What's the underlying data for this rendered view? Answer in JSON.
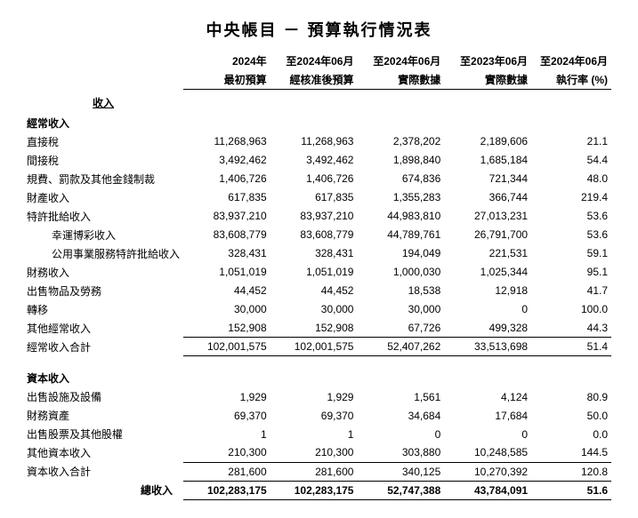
{
  "title": "中央帳目 － 預算執行情況表",
  "columns": {
    "c1": {
      "h1": "2024年",
      "h2": "最初預算"
    },
    "c2": {
      "h1": "至2024年06月",
      "h2": "經核准後預算"
    },
    "c3": {
      "h1": "至2024年06月",
      "h2": "實際數據"
    },
    "c4": {
      "h1": "至2023年06月",
      "h2": "實際數據"
    },
    "c5": {
      "h1": "至2024年06月",
      "h2": "執行率 (%)"
    }
  },
  "section_income": "收入",
  "recurring": {
    "header": "經常收入",
    "rows": [
      {
        "label": "直接稅",
        "v": [
          "11,268,963",
          "11,268,963",
          "2,378,202",
          "2,189,606",
          "21.1"
        ]
      },
      {
        "label": "間接稅",
        "v": [
          "3,492,462",
          "3,492,462",
          "1,898,840",
          "1,685,184",
          "54.4"
        ]
      },
      {
        "label": "規費、罰款及其他金錢制裁",
        "v": [
          "1,406,726",
          "1,406,726",
          "674,836",
          "721,344",
          "48.0"
        ]
      },
      {
        "label": "財產收入",
        "v": [
          "617,835",
          "617,835",
          "1,355,283",
          "366,744",
          "219.4"
        ]
      },
      {
        "label": "特許批給收入",
        "v": [
          "83,937,210",
          "83,937,210",
          "44,983,810",
          "27,013,231",
          "53.6"
        ]
      },
      {
        "label": "幸運博彩收入",
        "indent": 2,
        "v": [
          "83,608,779",
          "83,608,779",
          "44,789,761",
          "26,791,700",
          "53.6"
        ]
      },
      {
        "label": "公用事業服務特許批給收入",
        "indent": 2,
        "v": [
          "328,431",
          "328,431",
          "194,049",
          "221,531",
          "59.1"
        ]
      },
      {
        "label": "財務收入",
        "v": [
          "1,051,019",
          "1,051,019",
          "1,000,030",
          "1,025,344",
          "95.1"
        ]
      },
      {
        "label": "出售物品及勞務",
        "v": [
          "44,452",
          "44,452",
          "18,538",
          "12,918",
          "41.7"
        ]
      },
      {
        "label": "轉移",
        "v": [
          "30,000",
          "30,000",
          "30,000",
          "0",
          "100.0"
        ]
      },
      {
        "label": "其他經常收入",
        "v": [
          "152,908",
          "152,908",
          "67,726",
          "499,328",
          "44.3"
        ]
      }
    ],
    "subtotal": {
      "label": "經常收入合計",
      "v": [
        "102,001,575",
        "102,001,575",
        "52,407,262",
        "33,513,698",
        "51.4"
      ]
    }
  },
  "capital": {
    "header": "資本收入",
    "rows": [
      {
        "label": "出售設施及設備",
        "v": [
          "1,929",
          "1,929",
          "1,561",
          "4,124",
          "80.9"
        ]
      },
      {
        "label": "財務資產",
        "v": [
          "69,370",
          "69,370",
          "34,684",
          "17,684",
          "50.0"
        ]
      },
      {
        "label": "出售股票及其他股權",
        "v": [
          "1",
          "1",
          "0",
          "0",
          "0.0"
        ]
      },
      {
        "label": "其他資本收入",
        "v": [
          "210,300",
          "210,300",
          "303,880",
          "10,248,585",
          "144.5"
        ]
      }
    ],
    "subtotal": {
      "label": "資本收入合計",
      "v": [
        "281,600",
        "281,600",
        "340,125",
        "10,270,392",
        "120.8"
      ]
    }
  },
  "grandtotal": {
    "label": "總收入",
    "v": [
      "102,283,175",
      "102,283,175",
      "52,747,388",
      "43,784,091",
      "51.6"
    ]
  }
}
